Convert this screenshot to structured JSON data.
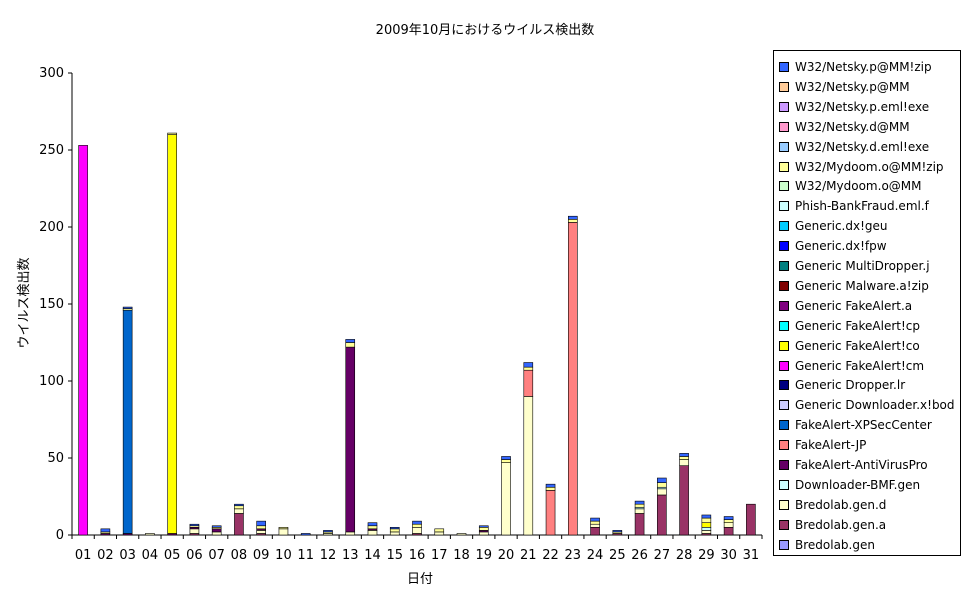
{
  "chart_data": {
    "type": "bar",
    "stacked": true,
    "title": "2009年10月におけるウイルス検出数",
    "xlabel": "日付",
    "ylabel": "ウイルス検出数",
    "ylim": [
      0,
      300
    ],
    "yticks": [
      0,
      50,
      100,
      150,
      200,
      250,
      300
    ],
    "grid": false,
    "legend_position": "right",
    "categories": [
      "01",
      "02",
      "03",
      "04",
      "05",
      "06",
      "07",
      "08",
      "09",
      "10",
      "11",
      "12",
      "13",
      "14",
      "15",
      "16",
      "17",
      "18",
      "19",
      "20",
      "21",
      "22",
      "23",
      "24",
      "25",
      "26",
      "27",
      "28",
      "29",
      "30",
      "31"
    ],
    "series": [
      {
        "name": "Bredolab.gen",
        "color": "#9999ff",
        "values": [
          0,
          0,
          0,
          0,
          0,
          0,
          0,
          0,
          0,
          0,
          0,
          0,
          0,
          0,
          0,
          0,
          0,
          0,
          0,
          0,
          0,
          0,
          0,
          0,
          0,
          0,
          0,
          0,
          0,
          0,
          0
        ]
      },
      {
        "name": "Bredolab.gen.a",
        "color": "#993366",
        "values": [
          0,
          0,
          0,
          0,
          0,
          1,
          0,
          14,
          1,
          0,
          0,
          0,
          0,
          0,
          0,
          1,
          0,
          0,
          0,
          0,
          0,
          0,
          0,
          5,
          1,
          14,
          26,
          45,
          1,
          5,
          20
        ]
      },
      {
        "name": "Bredolab.gen.d",
        "color": "#ffffcc",
        "values": [
          0,
          0,
          0,
          1,
          0,
          3,
          2,
          3,
          2,
          4,
          0,
          1,
          2,
          3,
          2,
          4,
          2,
          1,
          2,
          47,
          90,
          0,
          0,
          2,
          0,
          3,
          4,
          4,
          2,
          3,
          0
        ]
      },
      {
        "name": "Downloader-BMF.gen",
        "color": "#ccffff",
        "values": [
          0,
          0,
          0,
          0,
          0,
          0,
          0,
          0,
          0,
          0,
          0,
          0,
          0,
          0,
          0,
          0,
          0,
          0,
          0,
          0,
          0,
          0,
          0,
          0,
          0,
          1,
          1,
          0,
          2,
          0,
          0
        ]
      },
      {
        "name": "FakeAlert-AntiVirusPro",
        "color": "#660066",
        "values": [
          0,
          1,
          1,
          0,
          1,
          1,
          2,
          0,
          1,
          0,
          0,
          0,
          120,
          1,
          0,
          0,
          0,
          0,
          1,
          0,
          0,
          0,
          0,
          0,
          0,
          0,
          0,
          0,
          0,
          0,
          0
        ]
      },
      {
        "name": "FakeAlert-JP",
        "color": "#ff8080",
        "values": [
          0,
          0,
          0,
          0,
          0,
          0,
          0,
          0,
          0,
          0,
          0,
          0,
          0,
          0,
          0,
          0,
          0,
          0,
          0,
          0,
          17,
          29,
          203,
          0,
          0,
          0,
          0,
          0,
          0,
          0,
          0
        ]
      },
      {
        "name": "FakeAlert-XPSecCenter",
        "color": "#0066cc",
        "values": [
          0,
          0,
          145,
          0,
          0,
          0,
          0,
          0,
          0,
          0,
          0,
          0,
          0,
          0,
          0,
          0,
          0,
          0,
          0,
          0,
          0,
          0,
          0,
          0,
          0,
          0,
          0,
          0,
          0,
          0,
          0
        ]
      },
      {
        "name": "Generic Downloader.x!bod",
        "color": "#ccccff",
        "values": [
          0,
          0,
          0,
          0,
          0,
          0,
          0,
          0,
          0,
          0,
          0,
          0,
          0,
          0,
          0,
          0,
          0,
          0,
          0,
          0,
          0,
          0,
          0,
          0,
          0,
          0,
          0,
          0,
          0,
          0,
          0
        ]
      },
      {
        "name": "Generic Dropper.lr",
        "color": "#000080",
        "values": [
          0,
          0,
          0,
          0,
          0,
          0,
          0,
          0,
          0,
          0,
          0,
          0,
          0,
          0,
          0,
          0,
          0,
          0,
          0,
          0,
          0,
          0,
          0,
          0,
          0,
          0,
          0,
          0,
          0,
          0,
          0
        ]
      },
      {
        "name": "Generic FakeAlert!cm",
        "color": "#ff00ff",
        "values": [
          253,
          0,
          0,
          0,
          0,
          0,
          0,
          0,
          0,
          0,
          0,
          0,
          0,
          0,
          0,
          0,
          0,
          0,
          0,
          0,
          0,
          0,
          0,
          0,
          0,
          0,
          0,
          0,
          0,
          0,
          0
        ]
      },
      {
        "name": "Generic FakeAlert!co",
        "color": "#ffff00",
        "values": [
          0,
          0,
          0,
          0,
          259,
          0,
          0,
          0,
          0,
          0,
          0,
          0,
          0,
          0,
          0,
          0,
          0,
          0,
          0,
          0,
          0,
          0,
          0,
          0,
          0,
          0,
          0,
          0,
          3,
          0,
          0
        ]
      },
      {
        "name": "Generic FakeAlert!cp",
        "color": "#00ffff",
        "values": [
          0,
          0,
          0,
          0,
          0,
          0,
          0,
          0,
          0,
          0,
          0,
          0,
          0,
          0,
          0,
          0,
          0,
          0,
          0,
          0,
          0,
          0,
          0,
          0,
          0,
          0,
          0,
          0,
          0,
          0,
          0
        ]
      },
      {
        "name": "Generic FakeAlert.a",
        "color": "#800080",
        "values": [
          0,
          0,
          0,
          0,
          0,
          0,
          0,
          0,
          0,
          0,
          0,
          0,
          0,
          0,
          0,
          0,
          0,
          0,
          0,
          0,
          0,
          0,
          0,
          0,
          0,
          0,
          0,
          0,
          0,
          0,
          0
        ]
      },
      {
        "name": "Generic Malware.a!zip",
        "color": "#800000",
        "values": [
          0,
          0,
          0,
          0,
          0,
          0,
          0,
          0,
          0,
          0,
          0,
          0,
          0,
          0,
          0,
          0,
          0,
          0,
          0,
          0,
          0,
          0,
          0,
          0,
          0,
          0,
          0,
          0,
          0,
          0,
          0
        ]
      },
      {
        "name": "Generic MultiDropper.j",
        "color": "#008080",
        "values": [
          0,
          0,
          0,
          0,
          0,
          0,
          0,
          0,
          0,
          0,
          0,
          0,
          0,
          0,
          0,
          0,
          0,
          0,
          0,
          0,
          0,
          0,
          0,
          0,
          0,
          0,
          0,
          0,
          0,
          0,
          0
        ]
      },
      {
        "name": "Generic.dx!fpw",
        "color": "#0000ff",
        "values": [
          0,
          0,
          0,
          0,
          0,
          0,
          0,
          0,
          0,
          0,
          0,
          0,
          0,
          0,
          0,
          0,
          0,
          0,
          0,
          0,
          0,
          0,
          0,
          0,
          0,
          0,
          0,
          0,
          0,
          0,
          0
        ]
      },
      {
        "name": "Generic.dx!geu",
        "color": "#00ccff",
        "values": [
          0,
          0,
          0,
          0,
          0,
          0,
          0,
          0,
          0,
          0,
          0,
          0,
          0,
          0,
          0,
          0,
          0,
          0,
          0,
          0,
          0,
          0,
          0,
          0,
          0,
          0,
          0,
          0,
          0,
          0,
          0
        ]
      },
      {
        "name": "Phish-BankFraud.eml.f",
        "color": "#ccffff",
        "values": [
          0,
          0,
          0,
          0,
          0,
          0,
          0,
          0,
          0,
          0,
          0,
          0,
          0,
          0,
          0,
          0,
          0,
          0,
          0,
          0,
          0,
          0,
          0,
          0,
          0,
          0,
          0,
          0,
          0,
          0,
          0
        ]
      },
      {
        "name": "W32/Mydoom.o@MM",
        "color": "#ccffcc",
        "values": [
          0,
          0,
          0,
          0,
          0,
          0,
          0,
          0,
          0,
          0,
          0,
          0,
          0,
          0,
          0,
          0,
          0,
          0,
          0,
          0,
          0,
          0,
          0,
          0,
          0,
          0,
          0,
          0,
          0,
          0,
          0
        ]
      },
      {
        "name": "W32/Mydoom.o@MM!zip",
        "color": "#ffff99",
        "values": [
          0,
          1,
          1,
          0,
          1,
          1,
          1,
          2,
          2,
          1,
          0,
          1,
          3,
          2,
          2,
          2,
          2,
          0,
          2,
          2,
          2,
          2,
          2,
          2,
          1,
          2,
          3,
          2,
          3,
          2,
          0
        ]
      },
      {
        "name": "W32/Netsky.d.eml!exe",
        "color": "#99ccff",
        "values": [
          0,
          0,
          0,
          0,
          0,
          0,
          0,
          0,
          0,
          0,
          0,
          0,
          0,
          0,
          0,
          0,
          0,
          0,
          0,
          0,
          0,
          0,
          0,
          0,
          0,
          0,
          0,
          0,
          0,
          0,
          0
        ]
      },
      {
        "name": "W32/Netsky.d@MM",
        "color": "#ff99cc",
        "values": [
          0,
          0,
          0,
          0,
          0,
          0,
          0,
          0,
          0,
          0,
          0,
          0,
          0,
          0,
          0,
          0,
          0,
          0,
          0,
          0,
          0,
          0,
          0,
          0,
          0,
          0,
          0,
          0,
          0,
          0,
          0
        ]
      },
      {
        "name": "W32/Netsky.p.eml!exe",
        "color": "#cc99ff",
        "values": [
          0,
          0,
          0,
          0,
          0,
          0,
          0,
          0,
          0,
          0,
          0,
          0,
          0,
          0,
          0,
          0,
          0,
          0,
          0,
          0,
          0,
          0,
          0,
          0,
          0,
          0,
          0,
          0,
          0,
          0,
          0
        ]
      },
      {
        "name": "W32/Netsky.p@MM",
        "color": "#ffcc99",
        "values": [
          0,
          0,
          0,
          0,
          0,
          0,
          0,
          0,
          0,
          0,
          0,
          0,
          0,
          0,
          0,
          0,
          0,
          0,
          0,
          0,
          0,
          0,
          0,
          0,
          0,
          0,
          0,
          0,
          0,
          0,
          0
        ]
      },
      {
        "name": "W32/Netsky.p@MM!zip",
        "color": "#3366ff",
        "values": [
          0,
          2,
          1,
          0,
          0,
          1,
          1,
          1,
          3,
          0,
          1,
          1,
          2,
          2,
          1,
          2,
          0,
          0,
          1,
          2,
          3,
          2,
          2,
          2,
          1,
          2,
          3,
          2,
          2,
          2,
          0
        ]
      }
    ]
  }
}
